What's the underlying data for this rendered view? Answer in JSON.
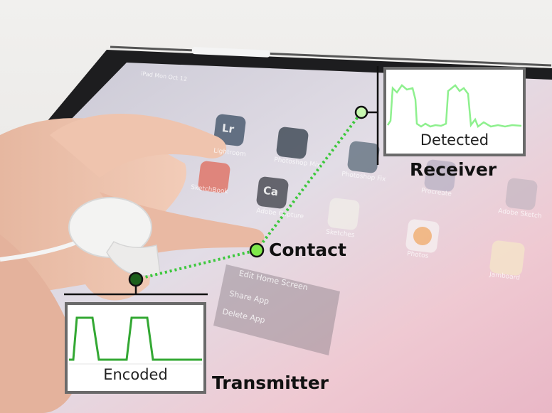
{
  "colors": {
    "signal": "#33a833",
    "detected_signal": "#8ef08e",
    "node_fill": "#7fe84a",
    "transmitter_node_fill": "#1b5e1b",
    "dotted_path": "#3cc83c",
    "frame": "#6a6a6a"
  },
  "labels": {
    "receiver": "Receiver",
    "contact": "Contact",
    "transmitter": "Transmitter",
    "encoded": "Encoded",
    "detected": "Detected"
  },
  "screen": {
    "status_left": "iPad  Mon Oct 12",
    "apps": [
      {
        "abbr": "Lr",
        "name": "Lightroom"
      },
      {
        "abbr": "",
        "name": "Photoshop Mix"
      },
      {
        "abbr": "",
        "name": "Photoshop Fix"
      },
      {
        "abbr": "Ca",
        "name": "Adobe Capture"
      },
      {
        "abbr": "",
        "name": "Sketches"
      },
      {
        "abbr": "",
        "name": "Procreate"
      },
      {
        "abbr": "",
        "name": "Adobe Sketch"
      },
      {
        "abbr": "",
        "name": "Photos"
      },
      {
        "abbr": "",
        "name": "Jamboard"
      },
      {
        "abbr": "",
        "name": "SketchBook"
      }
    ],
    "menu": [
      "Edit Home Screen",
      "Share App",
      "Delete App"
    ]
  }
}
